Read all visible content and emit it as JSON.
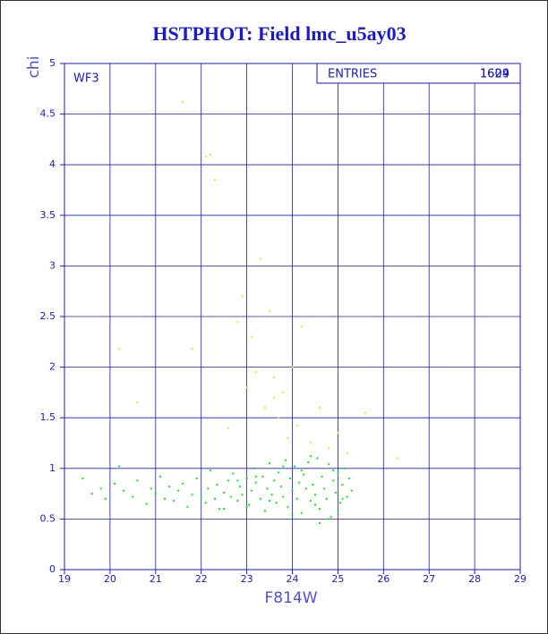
{
  "chart_data": {
    "type": "scatter",
    "title": "HSTPHOT: Field lmc_u5ay03",
    "x_label": "F814W",
    "y_label": "chi",
    "panel_label": "WF3",
    "stats": {
      "label": "ENTRIES",
      "values": [
        "1609",
        "1624"
      ]
    },
    "xlim": [
      19,
      29
    ],
    "ylim": [
      0,
      5
    ],
    "xticks": [
      19,
      20,
      21,
      22,
      23,
      24,
      25,
      26,
      27,
      28,
      29
    ],
    "yticks": [
      0,
      0.5,
      1,
      1.5,
      2,
      2.5,
      3,
      3.5,
      4,
      4.5,
      5
    ],
    "grid": true,
    "axis_color": "#1a1acc",
    "series": [
      {
        "color": "#22dd22",
        "x": [
          19.4,
          19.6,
          19.8,
          19.9,
          20.1,
          20.2,
          20.3,
          20.5,
          20.6,
          20.8,
          20.9,
          21.0,
          21.1,
          21.2,
          21.3,
          21.4,
          21.5,
          21.6,
          21.7,
          21.8,
          21.9,
          22.0,
          22.1,
          22.15,
          22.2,
          22.3,
          22.35,
          22.4,
          22.5,
          22.6,
          22.65,
          22.7,
          22.8,
          22.85,
          22.9,
          23.0,
          23.05,
          23.1,
          23.15,
          23.2,
          23.3,
          23.35,
          23.4,
          23.45,
          23.5,
          23.55,
          23.6,
          23.65,
          23.7,
          23.75,
          23.8,
          23.85,
          23.9,
          23.95,
          24.0,
          24.05,
          24.1,
          24.15,
          24.2,
          24.25,
          24.3,
          24.35,
          24.4,
          24.45,
          24.5,
          24.55,
          24.6,
          24.65,
          24.7,
          24.75,
          24.8,
          24.85,
          24.9,
          24.95,
          25.0,
          25.05,
          25.1,
          25.15,
          25.2,
          25.25,
          25.3,
          22.5,
          23.0,
          23.5,
          24.0,
          24.5,
          25.0,
          24.8,
          24.2,
          23.8,
          23.2,
          22.8,
          24.6,
          25.1,
          24.9,
          24.4
        ],
        "values": [
          0.9,
          0.75,
          0.8,
          0.7,
          0.85,
          1.02,
          0.78,
          0.72,
          0.88,
          0.65,
          0.8,
          0.75,
          0.92,
          0.7,
          0.82,
          0.68,
          0.78,
          0.85,
          0.62,
          0.74,
          0.9,
          0.72,
          0.66,
          0.8,
          0.98,
          0.7,
          0.84,
          0.6,
          0.76,
          0.88,
          0.72,
          0.95,
          0.68,
          0.82,
          0.74,
          0.9,
          0.64,
          0.78,
          1.0,
          0.86,
          0.7,
          0.92,
          0.58,
          0.8,
          1.05,
          0.74,
          0.88,
          0.66,
          0.96,
          0.82,
          0.72,
          1.08,
          0.62,
          0.9,
          0.78,
          1.02,
          0.7,
          0.86,
          0.56,
          0.94,
          0.8,
          1.06,
          0.68,
          0.84,
          0.74,
          1.1,
          0.6,
          0.92,
          0.8,
          0.7,
          1.04,
          0.52,
          0.88,
          0.76,
          0.96,
          0.66,
          0.84,
          1.0,
          0.72,
          0.9,
          0.78,
          0.6,
          0.62,
          0.68,
          0.54,
          0.64,
          0.58,
          0.5,
          0.98,
          1.02,
          0.92,
          0.88,
          0.46,
          0.7,
          0.98,
          1.12
        ]
      },
      {
        "color": "#e6e62a",
        "x": [
          20.2,
          20.6,
          21.6,
          22.1,
          22.2,
          22.3,
          21.8,
          22.8,
          22.9,
          23.0,
          23.1,
          23.3,
          23.4,
          23.5,
          23.6,
          23.7,
          23.8,
          23.9,
          24.0,
          24.1,
          24.2,
          24.4,
          24.6,
          24.8,
          25.0,
          25.2,
          25.6,
          26.3,
          23.2,
          23.6,
          22.6
        ],
        "values": [
          2.18,
          1.65,
          4.62,
          4.08,
          4.1,
          3.85,
          2.18,
          2.45,
          2.7,
          1.8,
          2.3,
          3.07,
          1.6,
          2.55,
          1.9,
          1.5,
          1.75,
          1.3,
          2.0,
          1.42,
          2.4,
          1.25,
          1.6,
          1.2,
          1.35,
          1.15,
          1.55,
          1.1,
          1.95,
          1.7,
          1.4
        ]
      }
    ]
  }
}
